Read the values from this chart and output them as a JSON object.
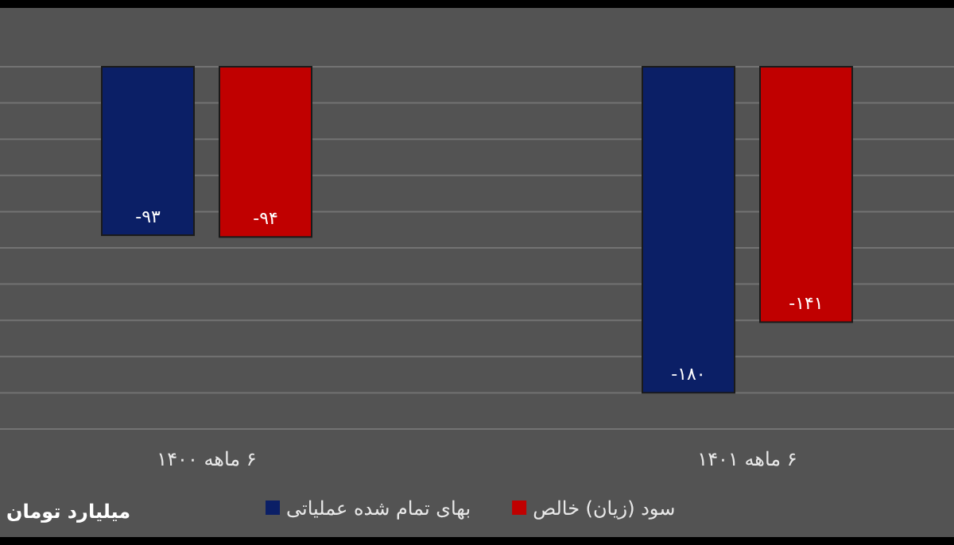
{
  "chart_data": {
    "type": "bar",
    "categories": [
      "۶ ماهه ۱۴۰۰",
      "۶ ماهه ۱۴۰۱"
    ],
    "series": [
      {
        "name": "بهای تمام شده عملیاتی",
        "color": "#0b1f66",
        "values": [
          -93,
          -180
        ],
        "value_labels": [
          "-۹۳",
          "-۱۸۰"
        ]
      },
      {
        "name": "سود (زیان) خالص",
        "color": "#c00000",
        "values": [
          -94,
          -141
        ],
        "value_labels": [
          "-۹۴",
          "-۱۴۱"
        ]
      }
    ],
    "ylim": [
      -200,
      0
    ],
    "yticks": [
      {
        "value": -200,
        "label": null
      },
      {
        "value": -180,
        "label": null
      },
      {
        "value": -160,
        "label": null
      },
      {
        "value": -140,
        "label": null
      },
      {
        "value": -120,
        "label": null
      },
      {
        "value": -100,
        "label": null
      },
      {
        "value": -80,
        "label": null
      },
      {
        "value": -60,
        "label": null
      },
      {
        "value": -40,
        "label": null
      },
      {
        "value": -20,
        "label": null
      },
      {
        "value": 0,
        "label": null
      }
    ],
    "tick_labels": "x",
    "grid": "y",
    "legend": "bottom",
    "annotations": [
      "میلیارد تومان"
    ]
  }
}
